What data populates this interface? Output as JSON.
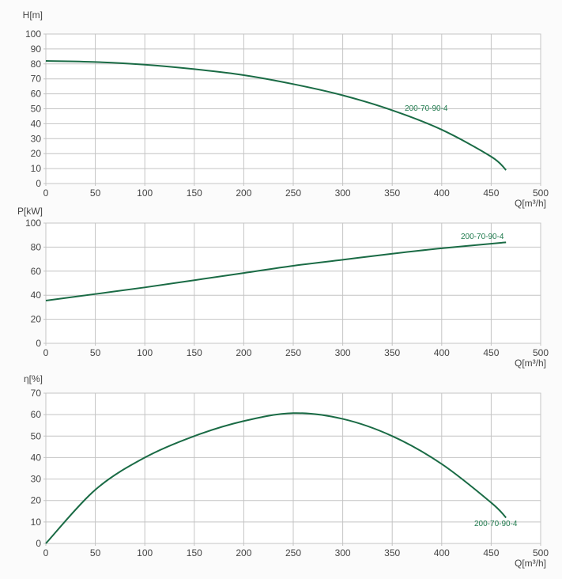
{
  "chart_data": [
    {
      "type": "line",
      "ylabel": "H[m]",
      "xlabel": "Q[m³/h]",
      "xlim": [
        0,
        500
      ],
      "ylim": [
        0,
        100
      ],
      "xticks": [
        0,
        50,
        100,
        150,
        200,
        250,
        300,
        350,
        400,
        450,
        500
      ],
      "yticks": [
        0,
        10,
        20,
        30,
        40,
        50,
        60,
        70,
        80,
        90,
        100
      ],
      "grid": true,
      "series": [
        {
          "name": "200-70-90-4",
          "color": "#1a6b45",
          "x": [
            0,
            50,
            100,
            150,
            200,
            250,
            300,
            350,
            400,
            450,
            465
          ],
          "y": [
            82,
            81.3,
            79.5,
            76.5,
            72.5,
            66.5,
            59,
            49,
            36,
            18,
            9
          ]
        }
      ]
    },
    {
      "type": "line",
      "ylabel": "P[kW]",
      "xlabel": "Q[m³/h]",
      "xlim": [
        0,
        500
      ],
      "ylim": [
        0,
        100
      ],
      "xticks": [
        0,
        50,
        100,
        150,
        200,
        250,
        300,
        350,
        400,
        450,
        500
      ],
      "yticks": [
        0,
        20,
        40,
        60,
        80,
        100
      ],
      "grid": true,
      "series": [
        {
          "name": "200-70-90-4",
          "color": "#1a6b45",
          "x": [
            0,
            50,
            100,
            150,
            200,
            250,
            300,
            350,
            400,
            465
          ],
          "y": [
            35.5,
            41,
            46.5,
            52.5,
            58.5,
            64.5,
            69.5,
            74.5,
            79,
            84
          ]
        }
      ]
    },
    {
      "type": "line",
      "ylabel": "η[%]",
      "xlabel": "Q[m³/h]",
      "xlim": [
        0,
        500
      ],
      "ylim": [
        0,
        70
      ],
      "xticks": [
        0,
        50,
        100,
        150,
        200,
        250,
        300,
        350,
        400,
        450,
        500
      ],
      "yticks": [
        0,
        10,
        20,
        30,
        40,
        50,
        60,
        70
      ],
      "grid": true,
      "series": [
        {
          "name": "200-70-90-4",
          "color": "#1a6b45",
          "x": [
            0,
            50,
            100,
            150,
            200,
            250,
            300,
            350,
            400,
            450,
            465
          ],
          "y": [
            0,
            25,
            40,
            50,
            57,
            60.7,
            58,
            50,
            37,
            19,
            12
          ]
        }
      ]
    }
  ]
}
